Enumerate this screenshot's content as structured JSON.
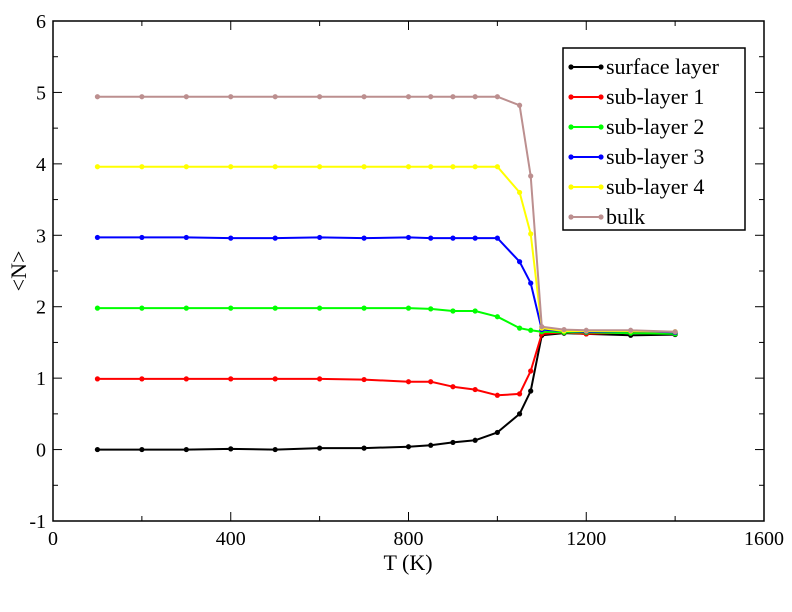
{
  "chart_data": {
    "type": "line",
    "xlabel": "T (K)",
    "ylabel": "<N>",
    "xlim": [
      0,
      1600
    ],
    "ylim": [
      -1,
      6
    ],
    "x_ticks": [
      0,
      400,
      800,
      1200,
      1600
    ],
    "x_tick_labels": [
      "0",
      "400",
      "800",
      "1200",
      "1600"
    ],
    "y_ticks": [
      -1,
      0,
      1,
      2,
      3,
      4,
      5,
      6
    ],
    "y_tick_labels": [
      "-1",
      "0",
      "1",
      "2",
      "3",
      "4",
      "5",
      "6"
    ],
    "grid": false,
    "legend_position": "top-right",
    "series": [
      {
        "name": "surface layer",
        "color": "#000000",
        "x": [
          100,
          200,
          300,
          400,
          500,
          600,
          700,
          800,
          850,
          900,
          950,
          1000,
          1050,
          1075,
          1100,
          1150,
          1200,
          1300,
          1400
        ],
        "y": [
          0.0,
          0.0,
          0.0,
          0.01,
          0.0,
          0.02,
          0.02,
          0.04,
          0.06,
          0.1,
          0.13,
          0.24,
          0.5,
          0.82,
          1.6,
          1.63,
          1.62,
          1.6,
          1.61
        ]
      },
      {
        "name": "sub-layer 1",
        "color": "#ff0000",
        "x": [
          100,
          200,
          300,
          400,
          500,
          600,
          700,
          800,
          850,
          900,
          950,
          1000,
          1050,
          1075,
          1100,
          1150,
          1200,
          1300,
          1400
        ],
        "y": [
          0.99,
          0.99,
          0.99,
          0.99,
          0.99,
          0.99,
          0.98,
          0.95,
          0.95,
          0.88,
          0.84,
          0.76,
          0.78,
          1.1,
          1.62,
          1.64,
          1.62,
          1.64,
          1.63
        ]
      },
      {
        "name": "sub-layer 2",
        "color": "#00ff00",
        "x": [
          100,
          200,
          300,
          400,
          500,
          600,
          700,
          800,
          850,
          900,
          950,
          1000,
          1050,
          1075,
          1100,
          1150,
          1200,
          1300,
          1400
        ],
        "y": [
          1.98,
          1.98,
          1.98,
          1.98,
          1.98,
          1.98,
          1.98,
          1.98,
          1.97,
          1.94,
          1.94,
          1.86,
          1.7,
          1.67,
          1.65,
          1.64,
          1.64,
          1.63,
          1.62
        ]
      },
      {
        "name": "sub-layer 3",
        "color": "#0000ff",
        "x": [
          100,
          200,
          300,
          400,
          500,
          600,
          700,
          800,
          850,
          900,
          950,
          1000,
          1050,
          1075,
          1100,
          1150,
          1200,
          1300,
          1400
        ],
        "y": [
          2.97,
          2.97,
          2.97,
          2.96,
          2.96,
          2.97,
          2.96,
          2.97,
          2.96,
          2.96,
          2.96,
          2.96,
          2.63,
          2.33,
          1.68,
          1.66,
          1.65,
          1.66,
          1.64
        ]
      },
      {
        "name": "sub-layer 4",
        "color": "#ffff00",
        "x": [
          100,
          200,
          300,
          400,
          500,
          600,
          700,
          800,
          850,
          900,
          950,
          1000,
          1050,
          1075,
          1100,
          1150,
          1200,
          1300,
          1400
        ],
        "y": [
          3.96,
          3.96,
          3.96,
          3.96,
          3.96,
          3.96,
          3.96,
          3.96,
          3.96,
          3.96,
          3.96,
          3.96,
          3.6,
          3.02,
          1.7,
          1.66,
          1.66,
          1.66,
          1.65
        ]
      },
      {
        "name": "bulk",
        "color": "#bc8f8f",
        "x": [
          100,
          200,
          300,
          400,
          500,
          600,
          700,
          800,
          850,
          900,
          950,
          1000,
          1050,
          1075,
          1100,
          1150,
          1200,
          1300,
          1400
        ],
        "y": [
          4.94,
          4.94,
          4.94,
          4.94,
          4.94,
          4.94,
          4.94,
          4.94,
          4.94,
          4.94,
          4.94,
          4.94,
          4.82,
          3.83,
          1.72,
          1.68,
          1.67,
          1.67,
          1.65
        ]
      }
    ]
  }
}
